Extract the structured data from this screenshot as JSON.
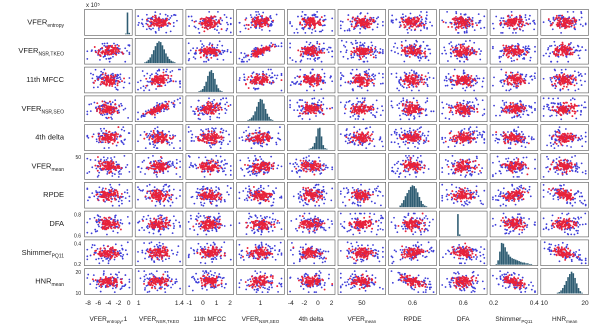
{
  "chart_data": {
    "type": "scatter",
    "title": "",
    "exponent_label": "x 10⁵",
    "diagonal_type": "histogram",
    "variables": [
      {
        "row_label": "VFER",
        "row_sub": "entropy",
        "col_label": "VFER",
        "col_sub": "entropy",
        "col_tail": ",1",
        "ticks": [
          "-8",
          "-6",
          "-4",
          "-2",
          "0"
        ]
      },
      {
        "row_label": "VFER",
        "row_sub": "NSR,TKEO",
        "col_label": "VFER",
        "col_sub": "NSR,TKEO",
        "col_tail": "",
        "ticks": [
          "1",
          "1.4"
        ]
      },
      {
        "row_label": "11th MFCC",
        "row_sub": "",
        "col_label": "11th MFCC",
        "col_sub": "",
        "col_tail": "",
        "ticks": [
          "-1",
          "0",
          "1",
          "2"
        ]
      },
      {
        "row_label": "VFER",
        "row_sub": "NSR,SEO",
        "col_label": "VFER",
        "col_sub": "NSR,SEO",
        "col_tail": "",
        "ticks": [
          "1"
        ]
      },
      {
        "row_label": "4th delta",
        "row_sub": "",
        "col_label": "4th delta",
        "col_sub": "",
        "col_tail": "",
        "ticks": [
          "-4",
          "-2",
          "0",
          "2"
        ]
      },
      {
        "row_label": "VFER",
        "row_sub": "mean",
        "col_label": "VFER",
        "col_sub": "mean",
        "col_tail": "",
        "ticks": [
          "50"
        ]
      },
      {
        "row_label": "RPDE",
        "row_sub": "",
        "col_label": "RPDE",
        "col_sub": "",
        "col_tail": "",
        "ticks": [
          "0.6"
        ]
      },
      {
        "row_label": "DFA",
        "row_sub": "",
        "col_label": "DFA",
        "col_sub": "",
        "col_tail": "",
        "ticks": [
          "0.6"
        ]
      },
      {
        "row_label": "Shimmer",
        "row_sub": "PQ11",
        "col_label": "Shimmer",
        "col_sub": "PQ11",
        "col_tail": "",
        "ticks": [
          "0.2",
          "0.4"
        ]
      },
      {
        "row_label": "HNR",
        "row_sub": "mean",
        "col_label": "HNR",
        "col_sub": "mean",
        "col_tail": "",
        "ticks": [
          "10",
          "20"
        ]
      }
    ],
    "row_ticks": [
      [],
      [],
      [],
      [],
      [],
      [
        "50"
      ],
      [],
      [
        "0.8",
        "0.6"
      ],
      [
        "0.4",
        "0.2"
      ],
      [
        "20",
        "10"
      ]
    ],
    "correlations": [
      [
        1.0,
        0.0,
        0.0,
        0.0,
        0.0,
        0.0,
        0.0,
        0.0,
        0.0,
        0.0
      ],
      [
        0.0,
        1.0,
        0.1,
        0.8,
        0.0,
        0.1,
        -0.1,
        0.0,
        0.0,
        0.0
      ],
      [
        0.0,
        0.1,
        1.0,
        0.2,
        0.0,
        0.0,
        0.0,
        0.0,
        0.0,
        0.0
      ],
      [
        0.0,
        0.8,
        0.2,
        1.0,
        0.0,
        0.1,
        -0.1,
        0.0,
        0.0,
        0.0
      ],
      [
        0.0,
        0.0,
        0.0,
        0.0,
        1.0,
        0.0,
        0.0,
        0.0,
        0.0,
        0.0
      ],
      [
        0.0,
        0.1,
        0.0,
        0.1,
        0.0,
        1.0,
        0.0,
        0.0,
        0.0,
        0.0
      ],
      [
        0.0,
        -0.1,
        0.0,
        -0.1,
        0.0,
        0.0,
        1.0,
        0.0,
        0.4,
        -0.6
      ],
      [
        0.0,
        0.0,
        0.0,
        0.0,
        0.0,
        0.0,
        0.0,
        1.0,
        0.0,
        0.0
      ],
      [
        0.0,
        0.0,
        0.0,
        0.0,
        0.0,
        0.0,
        0.4,
        0.0,
        1.0,
        -0.5
      ],
      [
        0.0,
        0.0,
        0.0,
        0.0,
        0.0,
        0.0,
        -0.6,
        0.0,
        -0.5,
        1.0
      ]
    ],
    "histogram_bins": [
      [
        0,
        0,
        0,
        0,
        0,
        0,
        0,
        0,
        0,
        0,
        0,
        0,
        0,
        0,
        0,
        0,
        0,
        0,
        0,
        0,
        0,
        0,
        1,
        30,
        2
      ],
      [
        0,
        0,
        0,
        0,
        1,
        2,
        4,
        7,
        11,
        16,
        21,
        25,
        27,
        26,
        22,
        17,
        12,
        8,
        5,
        3,
        2,
        1,
        0,
        0,
        0
      ],
      [
        0,
        0,
        0,
        0,
        0,
        0,
        1,
        2,
        4,
        8,
        14,
        22,
        28,
        30,
        26,
        18,
        10,
        5,
        2,
        1,
        0,
        0,
        0,
        0,
        0
      ],
      [
        0,
        0,
        0,
        0,
        0,
        1,
        2,
        4,
        7,
        12,
        18,
        24,
        28,
        27,
        22,
        15,
        9,
        5,
        2,
        1,
        0,
        0,
        0,
        0,
        0
      ],
      [
        0,
        0,
        0,
        0,
        0,
        0,
        0,
        0,
        0,
        0,
        0,
        1,
        2,
        4,
        9,
        18,
        29,
        30,
        18,
        6,
        2,
        1,
        0,
        0,
        0
      ],
      [
        0,
        0,
        0,
        0,
        0,
        0,
        0,
        0,
        0,
        0,
        0,
        0,
        0,
        0,
        0,
        0,
        0,
        0,
        0,
        0,
        0,
        0,
        0,
        0,
        0
      ],
      [
        0,
        0,
        0,
        0,
        0,
        2,
        5,
        9,
        14,
        18,
        22,
        26,
        28,
        27,
        24,
        19,
        13,
        8,
        4,
        2,
        1,
        0,
        0,
        0,
        0
      ],
      [
        0,
        0,
        0,
        0,
        0,
        0,
        0,
        0,
        0,
        30,
        2,
        0,
        0,
        0,
        0,
        0,
        0,
        0,
        0,
        0,
        0,
        0,
        0,
        0,
        0
      ],
      [
        0,
        0,
        1,
        6,
        18,
        30,
        29,
        24,
        18,
        14,
        11,
        9,
        8,
        7,
        6,
        5,
        4,
        3,
        3,
        2,
        2,
        1,
        1,
        0,
        0
      ],
      [
        0,
        0,
        0,
        0,
        0,
        0,
        0,
        0,
        1,
        2,
        4,
        7,
        11,
        16,
        21,
        25,
        28,
        26,
        20,
        13,
        7,
        3,
        1,
        0,
        0
      ]
    ],
    "groups": [
      {
        "color": "#e8223a"
      },
      {
        "color": "#3d3dd8"
      }
    ],
    "histogram_color": "#2f5d73"
  }
}
